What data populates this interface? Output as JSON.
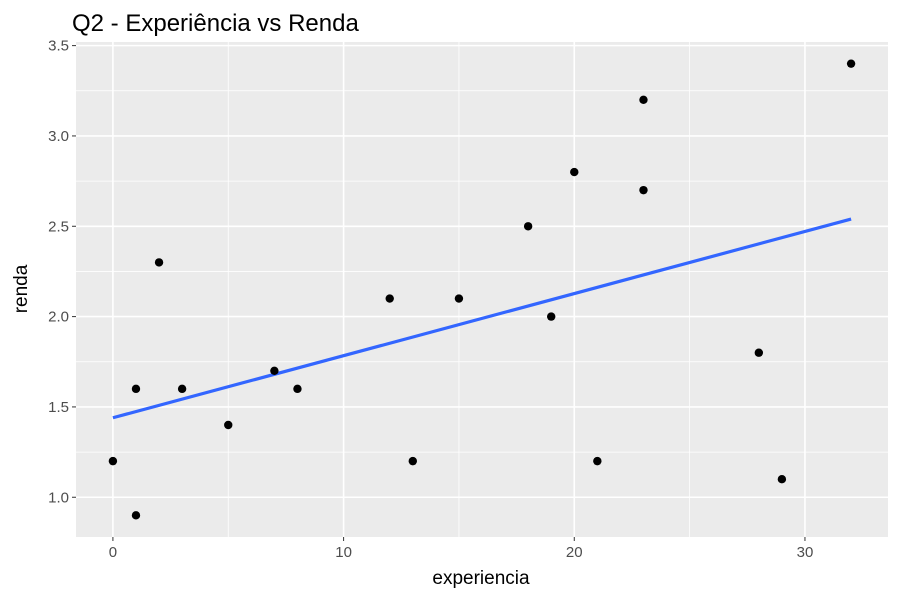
{
  "chart_data": {
    "type": "scatter",
    "title": "Q2 - Experiência vs Renda",
    "xlabel": "experiencia",
    "ylabel": "renda",
    "xlim": [
      -1.6,
      33.6
    ],
    "ylim": [
      0.78,
      3.52
    ],
    "x_ticks": [
      0,
      10,
      20,
      30
    ],
    "y_ticks": [
      1.0,
      1.5,
      2.0,
      2.5,
      3.0,
      3.5
    ],
    "x_tick_labels": [
      "0",
      "10",
      "20",
      "30"
    ],
    "y_tick_labels": [
      "1.0",
      "1.5",
      "2.0",
      "2.5",
      "3.0",
      "3.5"
    ],
    "grid": true,
    "series": [
      {
        "type": "scatter",
        "color": "#000000",
        "x": [
          0,
          1,
          1,
          2,
          3,
          5,
          7,
          8,
          12,
          13,
          15,
          18,
          19,
          20,
          21,
          23,
          23,
          28,
          29,
          32
        ],
        "y": [
          1.2,
          0.9,
          1.6,
          2.3,
          1.6,
          1.4,
          1.7,
          1.6,
          2.1,
          1.2,
          2.1,
          2.5,
          2.0,
          2.8,
          1.2,
          3.2,
          2.7,
          1.8,
          1.1,
          3.4
        ]
      },
      {
        "type": "line",
        "color": "#3366FF",
        "x": [
          0,
          32
        ],
        "y": [
          1.44,
          2.54
        ]
      }
    ],
    "colors": {
      "panel_background": "#EBEBEB",
      "grid": "#FFFFFF",
      "points": "#000000",
      "trend_line": "#3366FF"
    }
  }
}
